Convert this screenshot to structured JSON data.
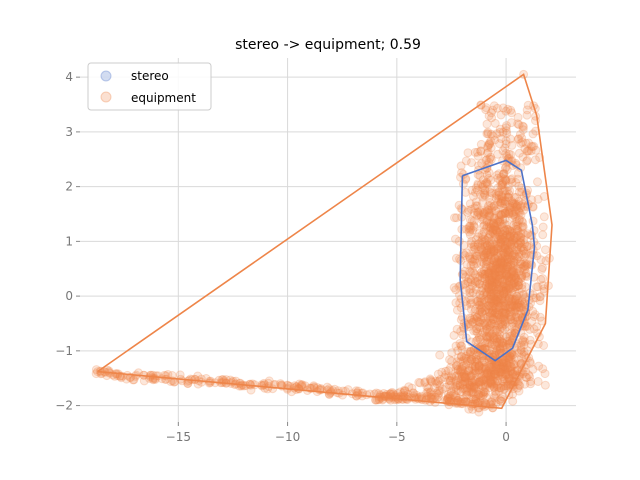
{
  "chart_data": {
    "type": "scatter",
    "title": "stereo -> equipment; 0.59",
    "xlabel": "",
    "ylabel": "",
    "xlim": [
      -19.5,
      3.2
    ],
    "ylim": [
      -2.3,
      4.35
    ],
    "xticks": [
      -15,
      -10,
      -5,
      0
    ],
    "yticks": [
      -2,
      -1,
      0,
      1,
      2,
      3,
      4
    ],
    "xtick_labels": [
      "−15",
      "−10",
      "−5",
      "0"
    ],
    "ytick_labels": [
      "−2",
      "−1",
      "0",
      "1",
      "2",
      "3",
      "4"
    ],
    "grid": true,
    "legend_position": "top-left",
    "series": [
      {
        "name": "stereo",
        "color": "#4c72c8",
        "hull": [
          [
            -2.0,
            2.2
          ],
          [
            0.0,
            2.48
          ],
          [
            0.7,
            2.3
          ],
          [
            1.2,
            1.3
          ],
          [
            1.3,
            0.9
          ],
          [
            1.0,
            -0.25
          ],
          [
            0.3,
            -0.95
          ],
          [
            -0.5,
            -1.18
          ],
          [
            -1.8,
            -0.83
          ],
          [
            -2.1,
            0.3
          ],
          [
            -2.0,
            2.2
          ]
        ]
      },
      {
        "name": "equipment",
        "color": "#ee8549",
        "hull": [
          [
            -18.7,
            -1.38
          ],
          [
            0.8,
            4.05
          ],
          [
            1.4,
            3.3
          ],
          [
            2.1,
            1.3
          ],
          [
            1.8,
            -0.5
          ],
          [
            -0.2,
            -2.05
          ],
          [
            -18.7,
            -1.38
          ]
        ],
        "tail_path": [
          [
            -18.7,
            -1.38
          ],
          [
            -17.0,
            -1.48
          ],
          [
            -15.0,
            -1.52
          ],
          [
            -13.0,
            -1.58
          ],
          [
            -11.0,
            -1.64
          ],
          [
            -9.0,
            -1.7
          ],
          [
            -7.0,
            -1.76
          ],
          [
            -5.0,
            -1.83
          ],
          [
            -3.0,
            -1.9
          ],
          [
            -1.5,
            -1.96
          ],
          [
            -0.4,
            -2.0
          ]
        ],
        "cluster": {
          "center": [
            -0.3,
            0.35
          ],
          "spread": [
            0.85,
            1.1
          ]
        }
      }
    ]
  }
}
